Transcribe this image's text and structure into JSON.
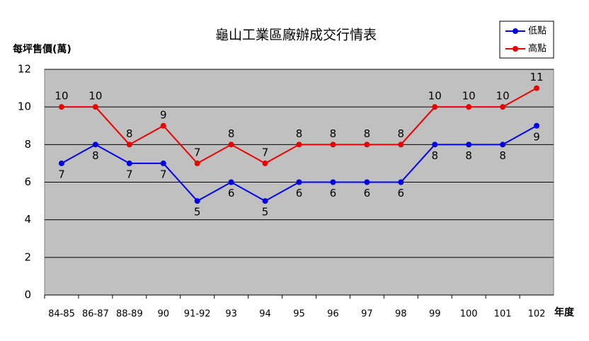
{
  "chart_data": {
    "type": "line",
    "title": "龜山工業區廠辦成交行情表",
    "y_label": "每坪售價(萬)",
    "x_label": "年度",
    "categories": [
      "84-85",
      "86-87",
      "88-89",
      "90",
      "91-92",
      "93",
      "94",
      "95",
      "96",
      "97",
      "98",
      "99",
      "100",
      "101",
      "102"
    ],
    "series": [
      {
        "name": "低點",
        "color": "#0000ee",
        "values": [
          7,
          8,
          7,
          7,
          5,
          6,
          5,
          6,
          6,
          6,
          6,
          8,
          8,
          8,
          9
        ]
      },
      {
        "name": "高點",
        "color": "#ee0000",
        "values": [
          10,
          10,
          8,
          9,
          7,
          8,
          7,
          8,
          8,
          8,
          8,
          10,
          10,
          10,
          11
        ]
      }
    ],
    "ylim": [
      0,
      12
    ],
    "yticks": [
      0,
      2,
      4,
      6,
      8,
      10,
      12
    ],
    "grid": true,
    "legend": "top-right"
  }
}
